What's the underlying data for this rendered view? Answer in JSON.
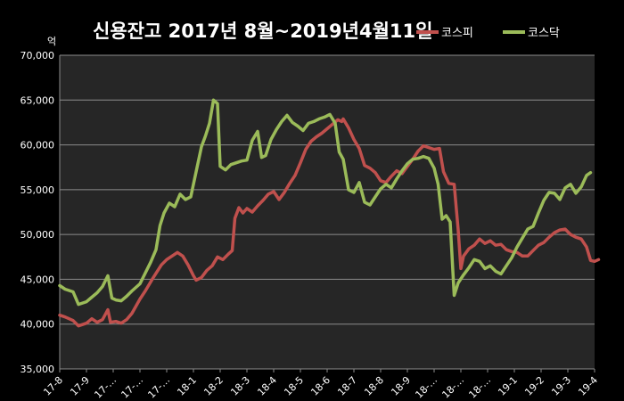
{
  "chart_data": {
    "type": "line",
    "title": "신용잔고 2017년 8월~2019년4월11일",
    "ylabel": "",
    "xlabel": "",
    "unit_label": "억",
    "ylim": [
      35000,
      70000
    ],
    "y_ticks": [
      "35,000",
      "40,000",
      "45,000",
      "50,000",
      "55,000",
      "60,000",
      "65,000",
      "70,000"
    ],
    "y_tick_values": [
      35000,
      40000,
      45000,
      50000,
      55000,
      60000,
      65000,
      70000
    ],
    "x_tick_labels": [
      "17-8",
      "17-9",
      "17-…",
      "17-…",
      "17-…",
      "18-1",
      "18-2",
      "18-3",
      "18-4",
      "18-5",
      "18-6",
      "18-7",
      "18-8",
      "18-9",
      "18-…",
      "18-…",
      "18-…",
      "19-1",
      "19-2",
      "19-3",
      "19-4"
    ],
    "grid": true,
    "legend_position": "top-right",
    "series": [
      {
        "name": "코스피",
        "color": "#c0504d",
        "points": [
          [
            0,
            41000
          ],
          [
            0.2,
            40800
          ],
          [
            0.5,
            40400
          ],
          [
            0.7,
            39800
          ],
          [
            1.0,
            40100
          ],
          [
            1.2,
            40600
          ],
          [
            1.4,
            40200
          ],
          [
            1.6,
            40500
          ],
          [
            1.8,
            41600
          ],
          [
            1.9,
            40200
          ],
          [
            2.1,
            40300
          ],
          [
            2.3,
            40100
          ],
          [
            2.5,
            40500
          ],
          [
            2.7,
            41200
          ],
          [
            3.0,
            42800
          ],
          [
            3.2,
            43700
          ],
          [
            3.5,
            45200
          ],
          [
            3.8,
            46600
          ],
          [
            4.0,
            47200
          ],
          [
            4.2,
            47600
          ],
          [
            4.4,
            48000
          ],
          [
            4.6,
            47600
          ],
          [
            4.8,
            46600
          ],
          [
            5.0,
            45400
          ],
          [
            5.1,
            44900
          ],
          [
            5.3,
            45200
          ],
          [
            5.5,
            46000
          ],
          [
            5.7,
            46500
          ],
          [
            5.9,
            47500
          ],
          [
            6.1,
            47200
          ],
          [
            6.3,
            47800
          ],
          [
            6.45,
            48200
          ],
          [
            6.55,
            51800
          ],
          [
            6.7,
            53000
          ],
          [
            6.85,
            52400
          ],
          [
            7.0,
            52900
          ],
          [
            7.2,
            52500
          ],
          [
            7.4,
            53200
          ],
          [
            7.6,
            53800
          ],
          [
            7.8,
            54500
          ],
          [
            8.0,
            54800
          ],
          [
            8.2,
            53900
          ],
          [
            8.4,
            54700
          ],
          [
            8.6,
            55700
          ],
          [
            8.8,
            56600
          ],
          [
            9.0,
            58000
          ],
          [
            9.2,
            59500
          ],
          [
            9.4,
            60400
          ],
          [
            9.6,
            60900
          ],
          [
            9.8,
            61300
          ],
          [
            10.0,
            61800
          ],
          [
            10.2,
            62300
          ],
          [
            10.4,
            62800
          ],
          [
            10.55,
            62600
          ],
          [
            10.6,
            62900
          ],
          [
            10.8,
            61900
          ],
          [
            11.0,
            60600
          ],
          [
            11.2,
            59600
          ],
          [
            11.4,
            57700
          ],
          [
            11.6,
            57400
          ],
          [
            11.8,
            56900
          ],
          [
            12.0,
            56000
          ],
          [
            12.2,
            55800
          ],
          [
            12.4,
            56500
          ],
          [
            12.6,
            57100
          ],
          [
            12.8,
            56800
          ],
          [
            13.0,
            57600
          ],
          [
            13.2,
            58400
          ],
          [
            13.4,
            59300
          ],
          [
            13.6,
            59900
          ],
          [
            13.8,
            59700
          ],
          [
            14.0,
            59500
          ],
          [
            14.2,
            59600
          ],
          [
            14.35,
            57000
          ],
          [
            14.55,
            55700
          ],
          [
            14.75,
            55600
          ],
          [
            14.9,
            50500
          ],
          [
            15.0,
            46200
          ],
          [
            15.1,
            47600
          ],
          [
            15.3,
            48400
          ],
          [
            15.5,
            48800
          ],
          [
            15.7,
            49500
          ],
          [
            15.9,
            49000
          ],
          [
            16.1,
            49300
          ],
          [
            16.3,
            48800
          ],
          [
            16.5,
            48900
          ],
          [
            16.7,
            48300
          ],
          [
            16.9,
            48100
          ],
          [
            17.1,
            48000
          ],
          [
            17.3,
            47600
          ],
          [
            17.5,
            47600
          ],
          [
            17.7,
            48200
          ],
          [
            17.9,
            48800
          ],
          [
            18.1,
            49100
          ],
          [
            18.3,
            49700
          ],
          [
            18.5,
            50200
          ],
          [
            18.7,
            50500
          ],
          [
            18.9,
            50600
          ],
          [
            19.1,
            50000
          ],
          [
            19.3,
            49700
          ],
          [
            19.5,
            49500
          ],
          [
            19.7,
            48600
          ],
          [
            19.85,
            47100
          ],
          [
            20.0,
            47000
          ],
          [
            20.15,
            47200
          ]
        ]
      },
      {
        "name": "코스닥",
        "color": "#9bbb59",
        "points": [
          [
            0,
            44300
          ],
          [
            0.2,
            43900
          ],
          [
            0.5,
            43600
          ],
          [
            0.7,
            42200
          ],
          [
            1.0,
            42500
          ],
          [
            1.2,
            43000
          ],
          [
            1.4,
            43500
          ],
          [
            1.6,
            44200
          ],
          [
            1.8,
            45400
          ],
          [
            1.95,
            42900
          ],
          [
            2.1,
            42700
          ],
          [
            2.3,
            42600
          ],
          [
            2.5,
            43100
          ],
          [
            2.7,
            43700
          ],
          [
            3.0,
            44500
          ],
          [
            3.2,
            45700
          ],
          [
            3.4,
            46900
          ],
          [
            3.6,
            48300
          ],
          [
            3.75,
            51000
          ],
          [
            3.9,
            52400
          ],
          [
            4.1,
            53500
          ],
          [
            4.3,
            53100
          ],
          [
            4.5,
            54500
          ],
          [
            4.7,
            53900
          ],
          [
            4.9,
            54200
          ],
          [
            5.1,
            57000
          ],
          [
            5.3,
            59800
          ],
          [
            5.45,
            61000
          ],
          [
            5.6,
            62400
          ],
          [
            5.75,
            65000
          ],
          [
            5.9,
            64600
          ],
          [
            6.0,
            57600
          ],
          [
            6.2,
            57200
          ],
          [
            6.4,
            57800
          ],
          [
            6.6,
            58000
          ],
          [
            6.8,
            58200
          ],
          [
            7.0,
            58300
          ],
          [
            7.2,
            60500
          ],
          [
            7.4,
            61500
          ],
          [
            7.55,
            58600
          ],
          [
            7.7,
            58800
          ],
          [
            7.9,
            60600
          ],
          [
            8.1,
            61700
          ],
          [
            8.3,
            62600
          ],
          [
            8.5,
            63300
          ],
          [
            8.7,
            62500
          ],
          [
            8.9,
            62100
          ],
          [
            9.1,
            61600
          ],
          [
            9.3,
            62400
          ],
          [
            9.5,
            62600
          ],
          [
            9.7,
            62900
          ],
          [
            9.9,
            63100
          ],
          [
            10.1,
            63400
          ],
          [
            10.3,
            62400
          ],
          [
            10.45,
            59200
          ],
          [
            10.6,
            58400
          ],
          [
            10.8,
            55000
          ],
          [
            11.0,
            54700
          ],
          [
            11.2,
            55800
          ],
          [
            11.4,
            53600
          ],
          [
            11.6,
            53300
          ],
          [
            11.8,
            54200
          ],
          [
            12.0,
            55100
          ],
          [
            12.2,
            55600
          ],
          [
            12.4,
            55200
          ],
          [
            12.6,
            56200
          ],
          [
            12.8,
            57100
          ],
          [
            13.0,
            57900
          ],
          [
            13.2,
            58400
          ],
          [
            13.4,
            58500
          ],
          [
            13.6,
            58700
          ],
          [
            13.8,
            58500
          ],
          [
            14.0,
            57400
          ],
          [
            14.15,
            55600
          ],
          [
            14.3,
            51700
          ],
          [
            14.45,
            52100
          ],
          [
            14.6,
            51400
          ],
          [
            14.75,
            43200
          ],
          [
            14.9,
            44600
          ],
          [
            15.1,
            45500
          ],
          [
            15.3,
            46300
          ],
          [
            15.5,
            47200
          ],
          [
            15.7,
            47000
          ],
          [
            15.9,
            46200
          ],
          [
            16.1,
            46500
          ],
          [
            16.3,
            45900
          ],
          [
            16.5,
            45600
          ],
          [
            16.7,
            46500
          ],
          [
            16.9,
            47400
          ],
          [
            17.1,
            48600
          ],
          [
            17.3,
            49600
          ],
          [
            17.5,
            50600
          ],
          [
            17.7,
            50900
          ],
          [
            17.9,
            52400
          ],
          [
            18.1,
            53800
          ],
          [
            18.3,
            54700
          ],
          [
            18.5,
            54600
          ],
          [
            18.7,
            53900
          ],
          [
            18.9,
            55200
          ],
          [
            19.1,
            55600
          ],
          [
            19.3,
            54600
          ],
          [
            19.5,
            55300
          ],
          [
            19.7,
            56600
          ],
          [
            19.85,
            56900
          ]
        ]
      }
    ]
  }
}
